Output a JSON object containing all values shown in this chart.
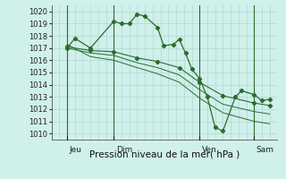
{
  "bg_color": "#cff0eb",
  "grid_color": "#b0d8d0",
  "line_color": "#2d6b2d",
  "marker_color": "#2d6b2d",
  "xlabel": "Pression niveau de la mer( hPa )",
  "ylabel_values": [
    1010,
    1011,
    1012,
    1013,
    1014,
    1015,
    1016,
    1017,
    1018,
    1019,
    1020
  ],
  "ylim": [
    1009.5,
    1020.5
  ],
  "xlim": [
    0,
    14.5
  ],
  "x_vlines": [
    1,
    4,
    9.5,
    13
  ],
  "x_tick_positions": [
    1,
    4,
    9.5,
    13
  ],
  "x_tick_labels": [
    "Jeu",
    "Dim",
    "Ven",
    "Sam"
  ],
  "series1_x": [
    1.0,
    1.5,
    2.5,
    4.0,
    4.5,
    5.0,
    5.5,
    6.0,
    6.8,
    7.2,
    7.8,
    8.2,
    8.6,
    9.0,
    9.5,
    10.0,
    10.5,
    11.0,
    11.8,
    12.2,
    13.0,
    13.5,
    14.0
  ],
  "series1_y": [
    1017.0,
    1017.8,
    1017.0,
    1019.2,
    1019.0,
    1019.0,
    1019.8,
    1019.6,
    1018.7,
    1017.2,
    1017.3,
    1017.7,
    1016.6,
    1015.3,
    1014.5,
    1013.0,
    1010.5,
    1010.2,
    1013.0,
    1013.5,
    1013.2,
    1012.7,
    1012.8
  ],
  "series2_x": [
    1.0,
    2.5,
    4.0,
    5.5,
    6.8,
    8.2,
    9.5,
    11.0,
    13.0,
    14.0
  ],
  "series2_y": [
    1017.1,
    1016.8,
    1016.7,
    1016.2,
    1015.9,
    1015.4,
    1014.2,
    1013.1,
    1012.5,
    1012.3
  ],
  "series3_x": [
    1.0,
    2.5,
    4.0,
    5.5,
    6.8,
    8.2,
    9.5,
    11.0,
    13.0,
    14.0
  ],
  "series3_y": [
    1017.0,
    1016.6,
    1016.4,
    1015.8,
    1015.4,
    1014.8,
    1013.6,
    1012.4,
    1011.8,
    1011.6
  ],
  "series4_x": [
    1.0,
    2.5,
    4.0,
    5.5,
    6.8,
    8.2,
    9.5,
    11.0,
    13.0,
    14.0
  ],
  "series4_y": [
    1017.3,
    1016.3,
    1016.0,
    1015.4,
    1014.9,
    1014.2,
    1012.9,
    1011.7,
    1011.0,
    1010.8
  ]
}
